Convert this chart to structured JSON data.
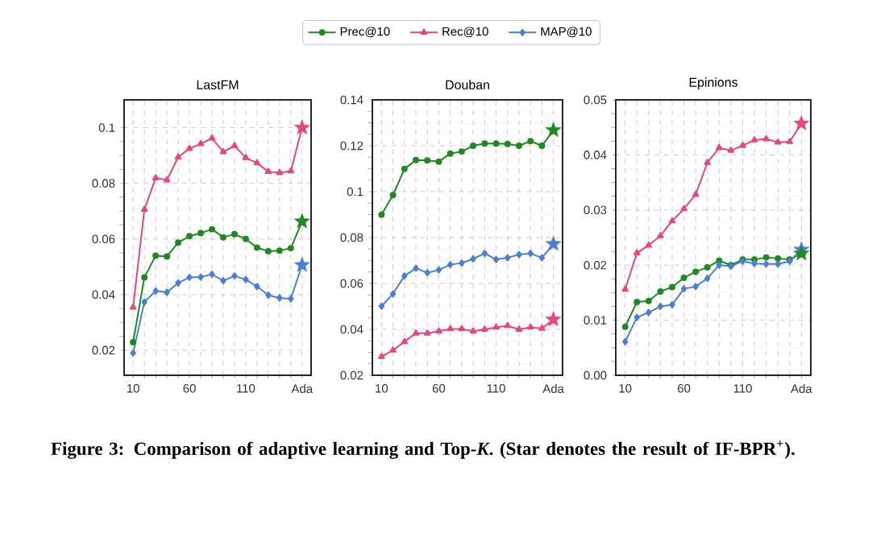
{
  "chart_data": [
    {
      "type": "line",
      "title": "LastFM",
      "categories": [
        "10",
        null,
        null,
        null,
        null,
        "60",
        null,
        null,
        null,
        null,
        "110",
        null,
        null,
        null,
        null,
        "Ada"
      ],
      "ylim": [
        0.011,
        0.11
      ],
      "yticks": [
        0.02,
        0.04,
        0.06,
        0.08,
        0.1
      ],
      "grid": true,
      "legend": "top",
      "line_style": "solid",
      "annotations": [
        "**Figure 3: Comparison of adaptive learning and Top-*K*. (Star denotes the result of IF-BPR$^{+}$).**"
      ],
      "series": [
        {
          "name": "Prec@10",
          "color": "#1f8a1f",
          "marker": "circle",
          "values": [
            0.0229,
            0.0462,
            0.054,
            0.0537,
            0.0587,
            0.061,
            0.0621,
            0.0635,
            0.0606,
            0.0617,
            0.06,
            0.0569,
            0.0556,
            0.0558,
            0.0567,
            0.0663
          ]
        },
        {
          "name": "Rec@10",
          "color": "#e8467c",
          "marker": "triangle",
          "values": [
            0.0354,
            0.0706,
            0.0819,
            0.0812,
            0.0894,
            0.0925,
            0.0942,
            0.0962,
            0.0913,
            0.0935,
            0.0892,
            0.0873,
            0.0842,
            0.0838,
            0.0844,
            0.1
          ]
        },
        {
          "name": "MAP@10",
          "color": "#4a7fd8",
          "marker": "diamond",
          "values": [
            0.019,
            0.0373,
            0.0413,
            0.0408,
            0.0442,
            0.0462,
            0.0463,
            0.0473,
            0.045,
            0.0467,
            0.0454,
            0.0429,
            0.0398,
            0.0388,
            0.0385,
            0.0506
          ]
        },
        {
          "type": "scatter",
          "color": "#1f8a1f",
          "marker": "star",
          "x": [
            "Ada"
          ],
          "values": [
            0.0663
          ]
        },
        {
          "type": "scatter",
          "color": "#e8467c",
          "marker": "star",
          "x": [
            "Ada"
          ],
          "values": [
            0.1
          ]
        },
        {
          "type": "scatter",
          "color": "#4a7fd8",
          "marker": "star",
          "x": [
            "Ada"
          ],
          "values": [
            0.0506
          ]
        }
      ]
    },
    {
      "type": "line",
      "title": "Douban",
      "categories": [
        "10",
        null,
        null,
        null,
        null,
        "60",
        null,
        null,
        null,
        null,
        "110",
        null,
        null,
        null,
        null,
        "Ada"
      ],
      "ylim": [
        0.02,
        0.14
      ],
      "yticks": [
        0.02,
        0.04,
        0.06,
        0.08,
        0.1,
        0.12,
        0.14
      ],
      "grid": true,
      "line_style": "solid",
      "series": [
        {
          "color": "#1f8a1f",
          "marker": "circle",
          "values": [
            0.09,
            0.0985,
            0.1099,
            0.1138,
            0.1136,
            0.1131,
            0.1166,
            0.1175,
            0.12,
            0.121,
            0.121,
            0.1208,
            0.12,
            0.122,
            0.12,
            0.1268
          ]
        },
        {
          "color": "#e8467c",
          "marker": "triangle",
          "values": [
            0.0281,
            0.0309,
            0.0346,
            0.0383,
            0.0383,
            0.0392,
            0.0402,
            0.0402,
            0.0392,
            0.04,
            0.0409,
            0.0416,
            0.04,
            0.0409,
            0.0404,
            0.0443
          ]
        },
        {
          "color": "#4a7fd8",
          "marker": "diamond",
          "values": [
            0.0501,
            0.0555,
            0.0633,
            0.0666,
            0.0647,
            0.0659,
            0.0682,
            0.0689,
            0.0707,
            0.0731,
            0.0705,
            0.0712,
            0.0726,
            0.0731,
            0.0712,
            0.0772
          ]
        },
        {
          "type": "scatter",
          "color": "#1f8a1f",
          "marker": "star",
          "x": [
            "Ada"
          ],
          "values": [
            0.1268
          ]
        },
        {
          "type": "scatter",
          "color": "#e8467c",
          "marker": "star",
          "x": [
            "Ada"
          ],
          "values": [
            0.0443
          ]
        },
        {
          "type": "scatter",
          "color": "#4a7fd8",
          "marker": "star",
          "x": [
            "Ada"
          ],
          "values": [
            0.0772
          ]
        }
      ]
    },
    {
      "type": "line",
      "title": "Epinions",
      "categories": [
        "10",
        null,
        null,
        null,
        null,
        "60",
        null,
        null,
        null,
        null,
        "110",
        null,
        null,
        null,
        null,
        "Ada"
      ],
      "ylim": [
        0,
        0.05
      ],
      "yticks": [
        {
          "value": 0,
          "label": "0.00"
        },
        {
          "value": 0.01,
          "label": "0.01"
        },
        {
          "value": 0.02,
          "label": "0.02"
        },
        {
          "value": 0.03,
          "label": "0.03"
        },
        {
          "value": 0.04,
          "label": "0.04"
        },
        {
          "value": 0.05,
          "label": "0.05"
        }
      ],
      "grid": true,
      "line_style": "solid",
      "series": [
        {
          "color": "#1f8a1f",
          "marker": "circle",
          "values": [
            0.0088,
            0.0133,
            0.0135,
            0.0152,
            0.016,
            0.0177,
            0.0188,
            0.0196,
            0.0208,
            0.02,
            0.021,
            0.021,
            0.0214,
            0.0212,
            0.021,
            0.0221
          ]
        },
        {
          "color": "#e8467c",
          "marker": "triangle",
          "values": [
            0.0156,
            0.0222,
            0.0236,
            0.0253,
            0.028,
            0.0302,
            0.0328,
            0.0386,
            0.0413,
            0.0408,
            0.0417,
            0.0427,
            0.0429,
            0.0423,
            0.0424,
            0.0457
          ]
        },
        {
          "color": "#4a7fd8",
          "marker": "diamond",
          "values": [
            0.0061,
            0.0105,
            0.0114,
            0.0125,
            0.0128,
            0.0157,
            0.0161,
            0.0176,
            0.02,
            0.0198,
            0.0207,
            0.0203,
            0.0202,
            0.0202,
            0.0207,
            0.0228
          ]
        },
        {
          "type": "scatter",
          "color": "#4a7fd8",
          "marker": "star",
          "x": [
            "Ada"
          ],
          "values": [
            0.0228
          ]
        },
        {
          "type": "scatter",
          "color": "#1f8a1f",
          "marker": "star",
          "x": [
            "Ada"
          ],
          "values": [
            0.0221
          ]
        },
        {
          "type": "scatter",
          "color": "#e8467c",
          "marker": "star",
          "x": [
            "Ada"
          ],
          "values": [
            0.0457
          ]
        }
      ]
    }
  ]
}
